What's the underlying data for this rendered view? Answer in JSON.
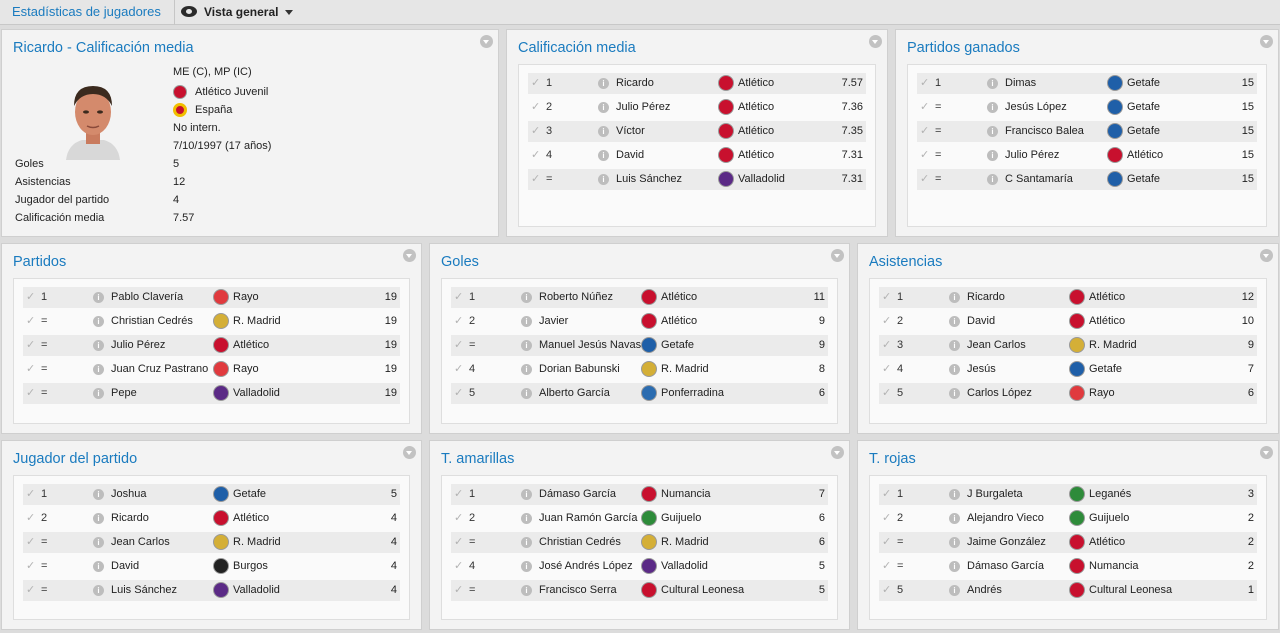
{
  "topbar": {
    "breadcrumb": "Estadísticas de jugadores",
    "view_label": "Vista general"
  },
  "profile": {
    "title": "Ricardo - Calificación media",
    "position": "ME (C), MP (IC)",
    "club": "Atlético Juvenil",
    "nation": "España",
    "intl": "No intern.",
    "dob": "7/10/1997 (17 años)",
    "stats": [
      {
        "label": "Goles",
        "value": "5"
      },
      {
        "label": "Asistencias",
        "value": "12"
      },
      {
        "label": "Jugador del partido",
        "value": "4"
      },
      {
        "label": "Calificación media",
        "value": "7.57"
      }
    ]
  },
  "panels": [
    {
      "title": "Calificación media",
      "rows": [
        {
          "rank": "1",
          "player": "Ricardo",
          "team": "Atlético",
          "value": "7.57"
        },
        {
          "rank": "2",
          "player": "Julio Pérez",
          "team": "Atlético",
          "value": "7.36"
        },
        {
          "rank": "3",
          "player": "Víctor",
          "team": "Atlético",
          "value": "7.35"
        },
        {
          "rank": "4",
          "player": "David",
          "team": "Atlético",
          "value": "7.31"
        },
        {
          "rank": "=",
          "player": "Luis Sánchez",
          "team": "Valladolid",
          "value": "7.31"
        }
      ]
    },
    {
      "title": "Partidos ganados",
      "rows": [
        {
          "rank": "1",
          "player": "Dimas",
          "team": "Getafe",
          "value": "15"
        },
        {
          "rank": "=",
          "player": "Jesús López",
          "team": "Getafe",
          "value": "15"
        },
        {
          "rank": "=",
          "player": "Francisco Balea",
          "team": "Getafe",
          "value": "15"
        },
        {
          "rank": "=",
          "player": "Julio Pérez",
          "team": "Atlético",
          "value": "15"
        },
        {
          "rank": "=",
          "player": "C Santamaría",
          "team": "Getafe",
          "value": "15"
        }
      ]
    },
    {
      "title": "Partidos",
      "rows": [
        {
          "rank": "1",
          "player": "Pablo Clavería",
          "team": "Rayo",
          "value": "19"
        },
        {
          "rank": "=",
          "player": "Christian Cedrés",
          "team": "R. Madrid",
          "value": "19"
        },
        {
          "rank": "=",
          "player": "Julio Pérez",
          "team": "Atlético",
          "value": "19"
        },
        {
          "rank": "=",
          "player": "Juan Cruz Pastrano",
          "team": "Rayo",
          "value": "19"
        },
        {
          "rank": "=",
          "player": "Pepe",
          "team": "Valladolid",
          "value": "19"
        }
      ]
    },
    {
      "title": "Goles",
      "rows": [
        {
          "rank": "1",
          "player": "Roberto Núñez",
          "team": "Atlético",
          "value": "11"
        },
        {
          "rank": "2",
          "player": "Javier",
          "team": "Atlético",
          "value": "9"
        },
        {
          "rank": "=",
          "player": "Manuel Jesús Navas",
          "team": "Getafe",
          "value": "9"
        },
        {
          "rank": "4",
          "player": "Dorian Babunski",
          "team": "R. Madrid",
          "value": "8"
        },
        {
          "rank": "5",
          "player": "Alberto García",
          "team": "Ponferradina",
          "value": "6"
        }
      ]
    },
    {
      "title": "Asistencias",
      "rows": [
        {
          "rank": "1",
          "player": "Ricardo",
          "team": "Atlético",
          "value": "12"
        },
        {
          "rank": "2",
          "player": "David",
          "team": "Atlético",
          "value": "10"
        },
        {
          "rank": "3",
          "player": "Jean Carlos",
          "team": "R. Madrid",
          "value": "9"
        },
        {
          "rank": "4",
          "player": "Jesús",
          "team": "Getafe",
          "value": "7"
        },
        {
          "rank": "5",
          "player": "Carlos López",
          "team": "Rayo",
          "value": "6"
        }
      ]
    },
    {
      "title": "Jugador del partido",
      "rows": [
        {
          "rank": "1",
          "player": "Joshua",
          "team": "Getafe",
          "value": "5"
        },
        {
          "rank": "2",
          "player": "Ricardo",
          "team": "Atlético",
          "value": "4"
        },
        {
          "rank": "=",
          "player": "Jean Carlos",
          "team": "R. Madrid",
          "value": "4"
        },
        {
          "rank": "=",
          "player": "David",
          "team": "Burgos",
          "value": "4"
        },
        {
          "rank": "=",
          "player": "Luis Sánchez",
          "team": "Valladolid",
          "value": "4"
        }
      ]
    },
    {
      "title": "T. amarillas",
      "rows": [
        {
          "rank": "1",
          "player": "Dámaso García",
          "team": "Numancia",
          "value": "7"
        },
        {
          "rank": "2",
          "player": "Juan Ramón García",
          "team": "Guijuelo",
          "value": "6"
        },
        {
          "rank": "=",
          "player": "Christian Cedrés",
          "team": "R. Madrid",
          "value": "6"
        },
        {
          "rank": "4",
          "player": "José Andrés López",
          "team": "Valladolid",
          "value": "5"
        },
        {
          "rank": "=",
          "player": "Francisco Serra",
          "team": "Cultural Leonesa",
          "value": "5"
        }
      ]
    },
    {
      "title": "T. rojas",
      "rows": [
        {
          "rank": "1",
          "player": "J Burgaleta",
          "team": "Leganés",
          "value": "3"
        },
        {
          "rank": "2",
          "player": "Alejandro Vieco",
          "team": "Guijuelo",
          "value": "2"
        },
        {
          "rank": "=",
          "player": "Jaime González",
          "team": "Atlético",
          "value": "2"
        },
        {
          "rank": "=",
          "player": "Dámaso García",
          "team": "Numancia",
          "value": "2"
        },
        {
          "rank": "5",
          "player": "Andrés",
          "team": "Cultural Leonesa",
          "value": "1"
        }
      ]
    }
  ],
  "team_colors": {
    "Atlético": "#c8102e",
    "Valladolid": "#5b2a86",
    "Getafe": "#1f5fa8",
    "Rayo": "#e03a3e",
    "R. Madrid": "#d4af37",
    "Ponferradina": "#2b6cb0",
    "Burgos": "#222222",
    "Numancia": "#c8102e",
    "Guijuelo": "#2e8b3a",
    "Cultural Leonesa": "#c8102e",
    "Leganés": "#2e8b3a"
  }
}
